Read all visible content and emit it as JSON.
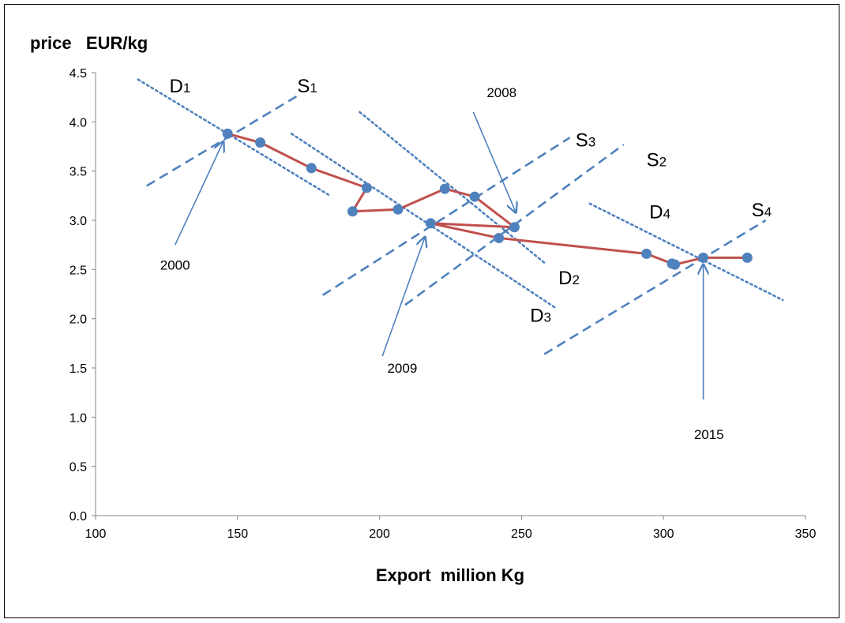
{
  "chart_data": {
    "type": "scatter",
    "ylabel": "price   EUR/kg",
    "xlabel": "Export  million Kg",
    "xlim": [
      100,
      350
    ],
    "ylim": [
      0,
      4.5
    ],
    "x_ticks": [
      "100",
      "150",
      "200",
      "250",
      "300",
      "350"
    ],
    "y_ticks": [
      "0.0",
      "0.5",
      "1.0",
      "1.5",
      "2.0",
      "2.5",
      "3.0",
      "3.5",
      "4.0",
      "4.5"
    ],
    "grid": false,
    "legend": "none",
    "colors": {
      "path": "#c0504d",
      "marker": "#4f81bd",
      "curves": "#4f81bd",
      "arrows": "#4f81bd"
    },
    "series": [
      {
        "x": [
          146.5,
          158,
          176,
          195.5,
          190.5,
          206.5,
          223,
          233.5,
          247.5,
          218,
          242,
          294,
          303,
          304,
          314,
          329.5
        ],
        "y": [
          3.88,
          3.79,
          3.53,
          3.33,
          3.09,
          3.11,
          3.32,
          3.24,
          2.93,
          2.97,
          2.82,
          2.66,
          2.56,
          2.55,
          2.62,
          2.62
        ]
      }
    ],
    "supply_demand_lines": [
      {
        "name": "D",
        "sub": "1",
        "style": "dotted",
        "from": [
          115,
          4.43
        ],
        "to": [
          182,
          3.26
        ],
        "label_at": [
          126,
          4.3
        ]
      },
      {
        "name": "S",
        "sub": "1",
        "style": "dashed",
        "from": [
          118,
          3.35
        ],
        "to": [
          172,
          4.28
        ],
        "label_at": [
          171,
          4.3
        ]
      },
      {
        "name": "D",
        "sub": "2",
        "style": "dotted",
        "from": [
          193,
          4.1
        ],
        "to": [
          258,
          2.57
        ],
        "label_at": [
          263,
          2.35
        ]
      },
      {
        "name": "S",
        "sub": "2",
        "style": "dashed",
        "from": [
          209,
          2.14
        ],
        "to": [
          286,
          3.77
        ],
        "label_at": [
          294,
          3.55
        ]
      },
      {
        "name": "D",
        "sub": "3",
        "style": "dotted",
        "from": [
          169,
          3.88
        ],
        "to": [
          262,
          2.11
        ],
        "label_at": [
          253,
          1.97
        ]
      },
      {
        "name": "S",
        "sub": "3",
        "style": "dashed",
        "from": [
          180,
          2.24
        ],
        "to": [
          267,
          3.84
        ],
        "label_at": [
          269,
          3.75
        ]
      },
      {
        "name": "D",
        "sub": "4",
        "style": "dotted",
        "from": [
          274,
          3.17
        ],
        "to": [
          342,
          2.19
        ],
        "label_at": [
          295,
          3.02
        ]
      },
      {
        "name": "S",
        "sub": "4",
        "style": "dashed",
        "from": [
          258,
          1.64
        ],
        "to": [
          336,
          3.0
        ],
        "label_at": [
          331,
          3.04
        ]
      }
    ],
    "annotations": [
      {
        "text": "2000",
        "text_at": [
          128,
          2.5
        ],
        "arrow_from": [
          128,
          2.75
        ],
        "arrow_to": [
          145,
          3.8
        ]
      },
      {
        "text": "2008",
        "text_at": [
          243,
          4.25
        ],
        "arrow_from": [
          233,
          4.1
        ],
        "arrow_to": [
          248,
          3.08
        ]
      },
      {
        "text": "2009",
        "text_at": [
          208,
          1.45
        ],
        "arrow_from": [
          201,
          1.62
        ],
        "arrow_to": [
          216,
          2.83
        ]
      },
      {
        "text": "2015",
        "text_at": [
          316,
          0.78
        ],
        "arrow_from": [
          314,
          1.18
        ],
        "arrow_to": [
          314,
          2.55
        ]
      }
    ]
  }
}
